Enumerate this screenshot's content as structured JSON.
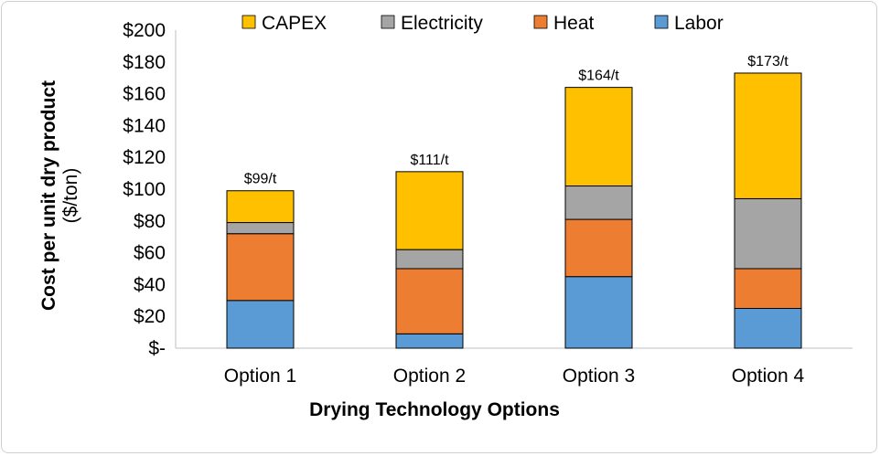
{
  "chart_data": {
    "type": "bar",
    "stacked": true,
    "categories": [
      "Option 1",
      "Option 2",
      "Option 3",
      "Option 4"
    ],
    "series": [
      {
        "name": "Labor",
        "color": "#5B9BD5",
        "values": [
          30,
          9,
          45,
          25
        ]
      },
      {
        "name": "Heat",
        "color": "#ED7D31",
        "values": [
          42,
          41,
          36,
          25
        ]
      },
      {
        "name": "Electricity",
        "color": "#A5A5A5",
        "values": [
          7,
          12,
          21,
          44
        ]
      },
      {
        "name": "CAPEX",
        "color": "#FFC000",
        "values": [
          20,
          49,
          62,
          79
        ]
      }
    ],
    "legend_order": [
      "CAPEX",
      "Electricity",
      "Heat",
      "Labor"
    ],
    "totals_labels": [
      "$99/t",
      "$111/t",
      "$164/t",
      "$173/t"
    ],
    "y_ticks": [
      "$-",
      "$20",
      "$40",
      "$60",
      "$80",
      "$100",
      "$120",
      "$140",
      "$160",
      "$180",
      "$200"
    ],
    "ylim": [
      0,
      200
    ],
    "ylabel": "Cost per unit dry product",
    "ylabel_unit": "($/ton)",
    "xlabel": "Drying Technology Options",
    "legend_position": "top",
    "grid": false
  }
}
